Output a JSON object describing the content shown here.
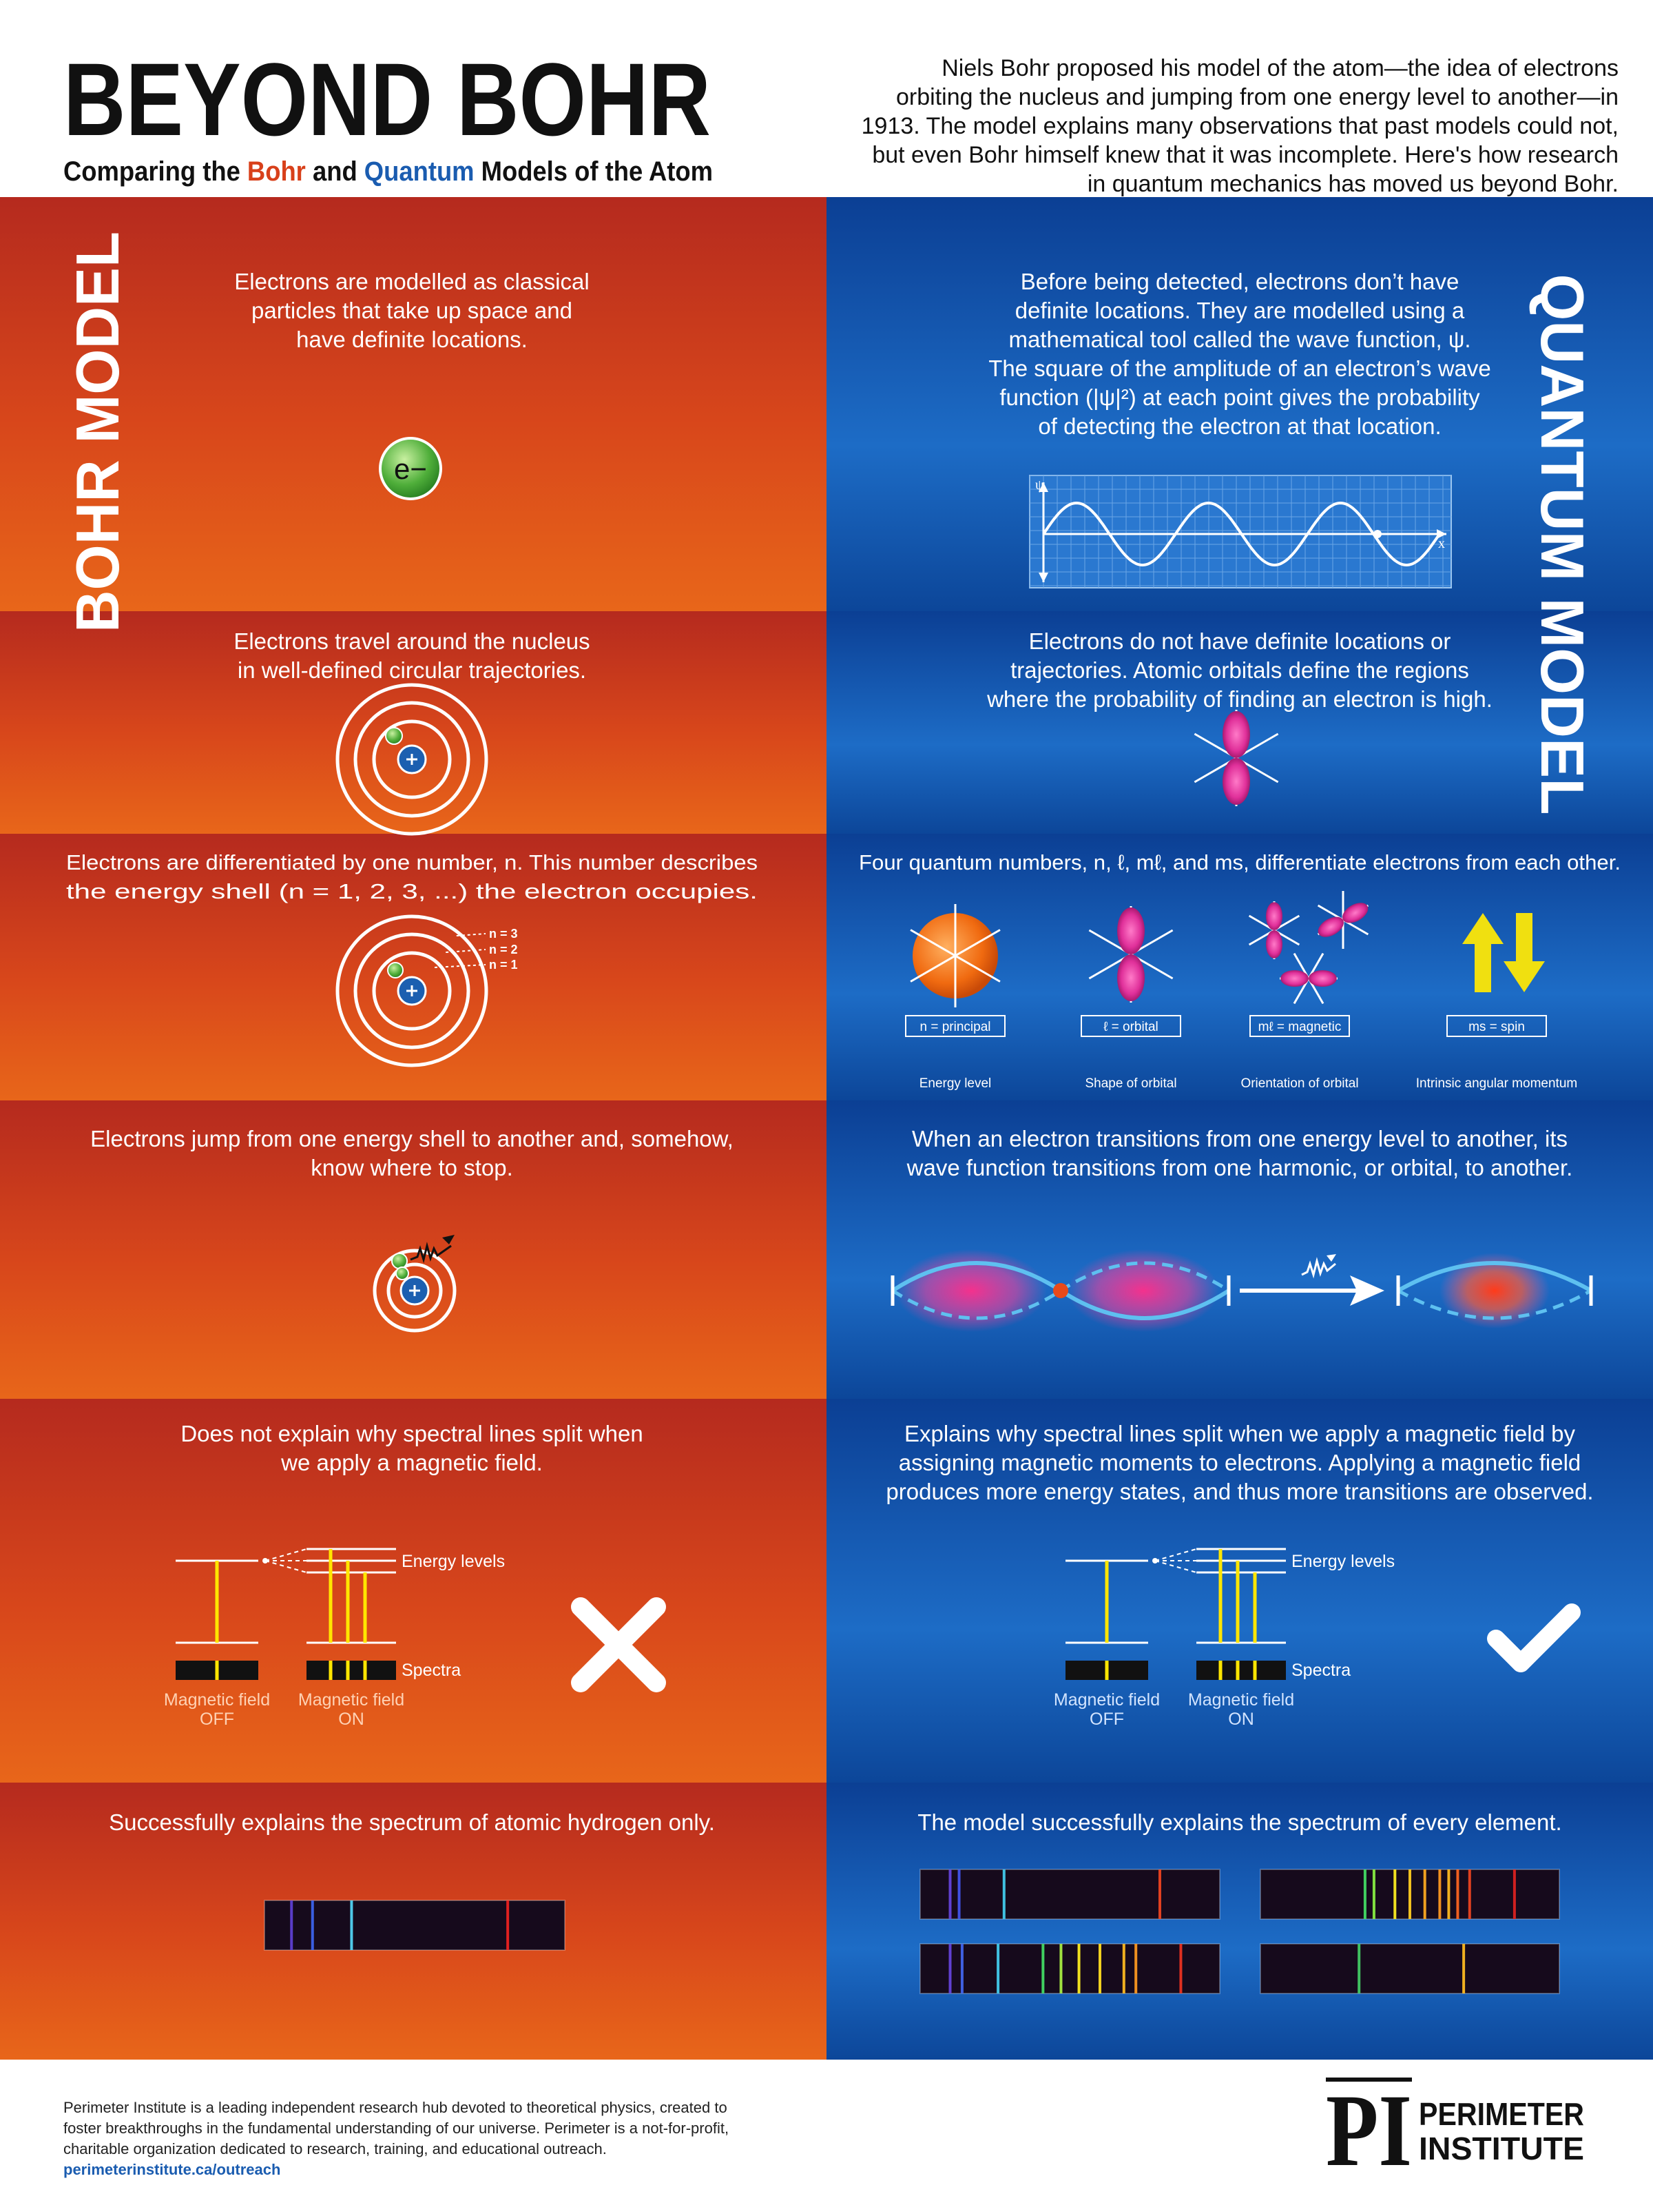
{
  "header": {
    "title": "BEYOND BOHR",
    "subtitle": {
      "before": "Comparing the ",
      "bohr": "Bohr",
      "middle": " and ",
      "quantum": "Quantum",
      "after": " Models of the Atom"
    },
    "intro": [
      "Niels Bohr proposed his model of the atom—the idea of electrons",
      "orbiting the nucleus and jumping from one energy level to another—in",
      "1913. The model explains many observations that past models could not,",
      "but even Bohr himself knew that it was incomplete. Here's how research",
      "in quantum mechanics has moved us beyond Bohr."
    ]
  },
  "side_labels": {
    "bohr": "BOHR MODEL",
    "quantum": "QUANTUM MODEL"
  },
  "rows": [
    {
      "bohr": {
        "text": [
          "Electrons are modelled as classical",
          "particles that take up space and",
          "have definite locations."
        ],
        "electron": "e−"
      },
      "quantum": {
        "text": [
          "Before being detected, electrons don’t have",
          "definite locations. They are modelled using a",
          "mathematical tool called the wave function, ψ.",
          "The square of the amplitude of an electron’s wave",
          "function (|ψ|²) at each point gives the probability",
          "of detecting the electron at that location."
        ],
        "axis_y": "ψ",
        "axis_x": "x"
      }
    },
    {
      "bohr": {
        "text": [
          "Electrons travel around the nucleus",
          "in well-defined circular trajectories."
        ]
      },
      "quantum": {
        "text": [
          "Electrons do not have definite locations or",
          "trajectories. Atomic orbitals define the regions",
          "where the probability of finding an electron is high."
        ]
      }
    },
    {
      "bohr": {
        "text": [
          "Electrons are differentiated by one number, n. This number describes",
          "the energy shell (n = 1, 2, 3, ...) the electron occupies."
        ],
        "shells": [
          "n = 3",
          "n = 2",
          "n = 1"
        ]
      },
      "quantum": {
        "text": [
          "Four quantum numbers, n, ℓ, mℓ, and ms, differentiate electrons from each other."
        ],
        "numbers": [
          {
            "label": "n = principal",
            "caption": "Energy level"
          },
          {
            "label": "ℓ = orbital",
            "caption": "Shape of orbital"
          },
          {
            "label": "mℓ = magnetic",
            "caption": "Orientation of orbital"
          },
          {
            "label": "ms = spin",
            "caption": "Intrinsic angular momentum"
          }
        ]
      }
    },
    {
      "bohr": {
        "text": [
          "Electrons jump from one energy shell to another and, somehow,",
          "know where to stop."
        ]
      },
      "quantum": {
        "text": [
          "When an electron transitions from one energy level to another, its",
          "wave function transitions from one harmonic, or orbital, to another."
        ]
      }
    },
    {
      "bohr": {
        "text": [
          "Does not explain why spectral lines split when",
          "we apply a magnetic field."
        ],
        "diagram": {
          "levels": "Energy levels",
          "spectra": "Spectra",
          "off": [
            "Magnetic field",
            "OFF"
          ],
          "on": [
            "Magnetic field",
            "ON"
          ]
        }
      },
      "quantum": {
        "text": [
          "Explains why spectral lines split when we apply a magnetic field by",
          "assigning magnetic moments to electrons. Applying a magnetic field",
          "produces more energy states, and thus more transitions are observed."
        ],
        "diagram": {
          "levels": "Energy levels",
          "spectra": "Spectra",
          "off": [
            "Magnetic field",
            "OFF"
          ],
          "on": [
            "Magnetic field",
            "ON"
          ]
        }
      }
    },
    {
      "bohr": {
        "text": [
          "Successfully explains the spectrum of atomic hydrogen only."
        ]
      },
      "quantum": {
        "text": [
          "The model successfully explains the spectrum of every element."
        ]
      }
    }
  ],
  "footer": {
    "text": [
      "Perimeter Institute is a leading independent research hub devoted to theoretical physics, created to",
      "foster breakthroughs in the fundamental understanding of our universe. Perimeter is a not-for-profit,",
      "charitable organization dedicated to research, training, and educational outreach."
    ],
    "url": "perimeterinstitute.ca/outreach",
    "logo": {
      "mark": "PI",
      "name": [
        "PERIMETER",
        "INSTITUTE"
      ]
    }
  }
}
